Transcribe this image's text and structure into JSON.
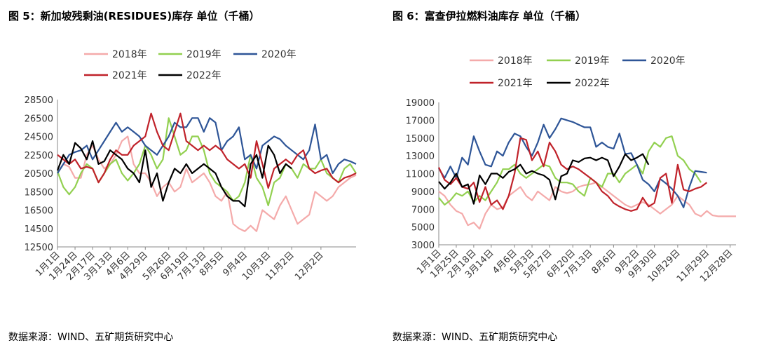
{
  "chart_data": [
    {
      "type": "line",
      "title": "图 5：新加坡残剩油(RESIDUES)库存 单位（千桶）",
      "source": "数据来源：WIND、五矿期货研究中心",
      "ylim": [
        12500,
        28500
      ],
      "yticks": [
        28500,
        26500,
        24500,
        22500,
        20500,
        18500,
        16500,
        14500,
        12500
      ],
      "xlim": [
        1,
        52
      ],
      "xtick_labels": [
        "1月1日",
        "1月24日",
        "2月17日",
        "3月13日",
        "4月6日",
        "4月29日",
        "5月26日",
        "6月19日",
        "7月13日",
        "8月5日",
        "9月4日",
        "10月3日",
        "11月2日",
        "12月2日"
      ],
      "xtick_weeks": [
        1,
        4,
        7,
        10,
        13,
        16,
        20,
        23,
        26,
        29,
        33,
        37,
        41,
        46
      ],
      "legend": [
        "2018年",
        "2019年",
        "2020年",
        "2021年",
        "2022年"
      ],
      "series": [
        {
          "name": "2018年",
          "color": "#f4aaaa",
          "values": [
            20500,
            21500,
            21200,
            20000,
            20000,
            22500,
            23500,
            22000,
            21000,
            21500,
            22500,
            24000,
            24500,
            21500,
            20500,
            20500,
            19500,
            18000,
            19000,
            19500,
            18500,
            19000,
            21000,
            19500,
            20000,
            20500,
            19500,
            18000,
            17500,
            18500,
            15000,
            14500,
            14200,
            14800,
            14200,
            16500,
            16000,
            15500,
            17000,
            18000,
            16500,
            15000,
            15500,
            16000,
            18500,
            18000,
            17500,
            18000,
            19000,
            19500,
            20000,
            20300
          ]
        },
        {
          "name": "2019年",
          "color": "#92d050",
          "values": [
            20700,
            19000,
            18200,
            19000,
            20500,
            21500,
            21000,
            19500,
            20500,
            21500,
            22000,
            20500,
            19700,
            20500,
            21500,
            23500,
            22500,
            21000,
            22000,
            26500,
            24500,
            22500,
            23000,
            24500,
            24500,
            23000,
            20500,
            19500,
            19000,
            18500,
            17500,
            18000,
            19500,
            22500,
            20000,
            19000,
            17000,
            19500,
            20000,
            21500,
            21000,
            20000,
            21500,
            21000,
            21000,
            22000,
            20500,
            20000,
            19500,
            21000,
            21500,
            20500
          ]
        },
        {
          "name": "2020年",
          "color": "#2e5597",
          "values": [
            20500,
            21500,
            22500,
            22800,
            23000,
            23500,
            22000,
            23000,
            24000,
            25000,
            26000,
            25000,
            25500,
            25000,
            24500,
            23500,
            23000,
            22500,
            23500,
            24500,
            26000,
            25500,
            25500,
            26500,
            26500,
            25000,
            26500,
            26000,
            23000,
            24000,
            24500,
            25500,
            22000,
            22500,
            21000,
            23500,
            24000,
            24500,
            24200,
            23500,
            23000,
            22500,
            22000,
            23000,
            25800,
            22000,
            22500,
            20500,
            21500,
            22000,
            21800,
            21500
          ]
        },
        {
          "name": "2021年",
          "color": "#c0222a",
          "values": [
            22500,
            22000,
            21500,
            22000,
            21000,
            21200,
            21000,
            19500,
            20500,
            22000,
            23000,
            22500,
            22500,
            23500,
            24000,
            24500,
            27000,
            25000,
            23500,
            23000,
            25000,
            27000,
            24000,
            23500,
            23000,
            23500,
            23000,
            23500,
            23000,
            22000,
            21500,
            21000,
            21500,
            20000,
            24000,
            21500,
            18900,
            21000,
            21500,
            22000,
            21500,
            22500,
            23000,
            21000,
            20500,
            20800,
            21000,
            20000,
            19500,
            20000,
            20200,
            20500
          ]
        },
        {
          "name": "2022年",
          "color": "#000000",
          "values": [
            20800,
            22500,
            21500,
            23800,
            23200,
            22000,
            24000,
            21500,
            21800,
            23000,
            22500,
            22000,
            21000,
            20500,
            19500,
            23000,
            19000,
            20500,
            17500,
            19500,
            21000,
            20500,
            21500,
            20500,
            21000,
            21500,
            21000,
            20500,
            19000,
            18000,
            17500,
            17500,
            16900,
            21500,
            22500,
            20000,
            23500,
            22500,
            20500,
            21500,
            21000
          ]
        }
      ]
    },
    {
      "type": "line",
      "title": "图 6：富查伊拉燃料油库存 单位（千桶）",
      "source": "数据来源：WIND、五矿期货研究中心",
      "ylim": [
        3000,
        19000
      ],
      "yticks": [
        19000,
        17000,
        15000,
        13000,
        11000,
        9000,
        7000,
        5000,
        3000
      ],
      "xlim": [
        1,
        52
      ],
      "xtick_labels": [
        "1月1日",
        "1月25日",
        "2月18日",
        "3月14日",
        "4月6日",
        "5月3日",
        "5月27日",
        "6月20日",
        "7月13日",
        "8月6日",
        "9月2日",
        "9月30日",
        "10月29日",
        "11月29日",
        "12月28日"
      ],
      "xtick_weeks": [
        1,
        4,
        7,
        10,
        14,
        17,
        20,
        24,
        27,
        31,
        35,
        38,
        42,
        47,
        51
      ],
      "legend": [
        "2018年",
        "2019年",
        "2020年",
        "2021年",
        "2022年"
      ],
      "series": [
        {
          "name": "2018年",
          "color": "#f4aaaa",
          "values": [
            9000,
            8500,
            7500,
            6800,
            6500,
            5200,
            5500,
            4800,
            6500,
            7500,
            7000,
            7200,
            8500,
            9000,
            9500,
            8500,
            8000,
            9000,
            8500,
            8000,
            9500,
            9000,
            8800,
            9000,
            9500,
            9700,
            9800,
            10000,
            9500,
            9000,
            8500,
            8000,
            7500,
            7200,
            7500,
            7800,
            7500,
            7000,
            6500,
            7000,
            7500,
            8500,
            8000,
            7500,
            6500,
            6200,
            6800,
            6300,
            6200,
            6200,
            6200,
            6200
          ]
        },
        {
          "name": "2019年",
          "color": "#92d050",
          "values": [
            8300,
            7500,
            8000,
            8800,
            8500,
            9000,
            7800,
            8500,
            8000,
            9000,
            10000,
            11500,
            11500,
            12000,
            11000,
            10500,
            11000,
            11500,
            12000,
            11800,
            10500,
            10000,
            10000,
            9800,
            9000,
            8500,
            10500,
            10000,
            9500,
            11000,
            11000,
            10000,
            11000,
            11500,
            12000,
            11000,
            13500,
            14500,
            14000,
            15000,
            15200,
            13000,
            12500,
            11500,
            11000,
            10000
          ]
        },
        {
          "name": "2020年",
          "color": "#2e5597",
          "values": [
            11600,
            10500,
            11800,
            10500,
            12800,
            12000,
            15200,
            13500,
            12000,
            11800,
            13500,
            13000,
            14500,
            15500,
            15200,
            14000,
            13000,
            14500,
            16500,
            15000,
            16000,
            17200,
            17000,
            16800,
            16500,
            16200,
            16200,
            14000,
            14500,
            14000,
            13800,
            15500,
            13200,
            13300,
            12000,
            10300,
            9800,
            9000,
            10400,
            9900,
            9300,
            8500,
            7200,
            9500,
            11300,
            11200,
            11100
          ]
        },
        {
          "name": "2021年",
          "color": "#c0222a",
          "values": [
            11700,
            10300,
            9800,
            10500,
            9500,
            9300,
            10000,
            7800,
            9500,
            7500,
            8000,
            7000,
            8500,
            11000,
            15000,
            14800,
            12500,
            13500,
            11800,
            14500,
            13500,
            12000,
            11500,
            11800,
            11500,
            11000,
            10500,
            10000,
            9000,
            8500,
            7700,
            7300,
            7000,
            6800,
            7000,
            8300,
            7300,
            7700,
            10500,
            11000,
            7700,
            12000,
            9200,
            9000,
            9300,
            9500,
            10000
          ]
        },
        {
          "name": "2022年",
          "color": "#000000",
          "values": [
            10100,
            9300,
            10000,
            11000,
            9500,
            9800,
            7600,
            10800,
            9800,
            11000,
            11000,
            10500,
            11200,
            11500,
            12000,
            11000,
            11300,
            11000,
            10800,
            10300,
            8100,
            10700,
            11000,
            12500,
            12300,
            12700,
            12800,
            12500,
            12800,
            12500,
            10700,
            11800,
            13200,
            12500,
            12800,
            13200,
            12000
          ]
        }
      ]
    }
  ]
}
